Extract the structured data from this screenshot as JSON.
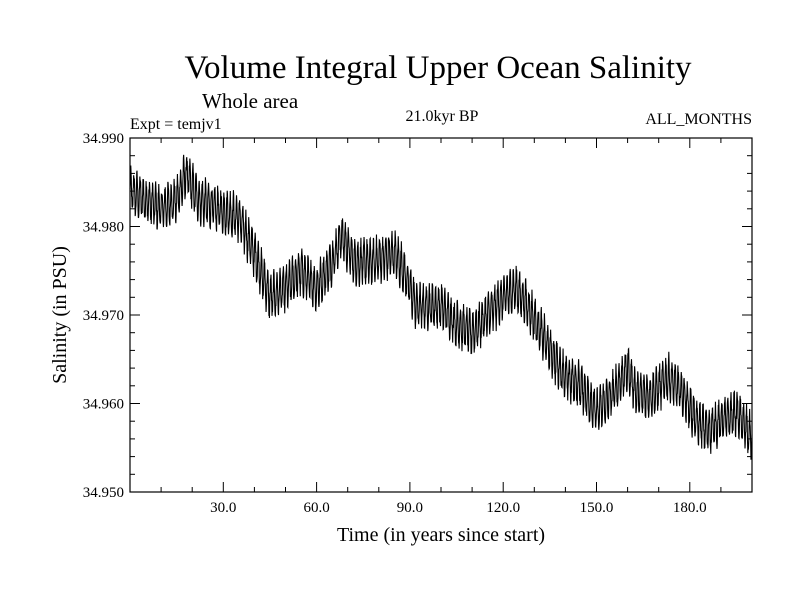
{
  "chart_data": {
    "type": "line",
    "title": "Volume Integral Upper Ocean Salinity",
    "subtitle": "Whole area",
    "experiment": "Expt = temjv1",
    "period": "21.0kyr BP",
    "months": "ALL_MONTHS",
    "xlabel": "Time (in years since start)",
    "ylabel": "Salinity (in PSU)",
    "xlim": [
      0,
      200
    ],
    "ylim": [
      34.95,
      34.99
    ],
    "x_ticks": [
      30,
      60,
      90,
      120,
      150,
      180
    ],
    "x_tick_labels": [
      "30.0",
      "60.0",
      "90.0",
      "120.0",
      "150.0",
      "180.0"
    ],
    "y_ticks": [
      34.95,
      34.96,
      34.97,
      34.98,
      34.99
    ],
    "y_tick_labels": [
      "34.950",
      "34.960",
      "34.970",
      "34.980",
      "34.990"
    ],
    "sampling": "monthly",
    "seasonal_amplitude": 0.0022,
    "series": [
      {
        "name": "salinity",
        "trend_x": [
          0,
          5,
          10,
          15,
          18,
          22,
          28,
          35,
          40,
          45,
          50,
          55,
          60,
          65,
          68,
          72,
          78,
          85,
          88,
          92,
          100,
          105,
          110,
          115,
          120,
          124,
          128,
          135,
          140,
          145,
          150,
          155,
          160,
          163,
          168,
          173,
          178,
          182,
          186,
          190,
          195,
          200
        ],
        "trend_y": [
          34.984,
          34.983,
          34.982,
          34.983,
          34.986,
          34.983,
          34.982,
          34.981,
          34.977,
          34.972,
          34.973,
          34.975,
          34.973,
          34.976,
          34.979,
          34.976,
          34.976,
          34.977,
          34.975,
          34.971,
          34.971,
          34.969,
          34.968,
          34.97,
          34.972,
          34.973,
          34.971,
          34.966,
          34.963,
          34.962,
          34.959,
          34.961,
          34.964,
          34.961,
          34.961,
          34.963,
          34.961,
          34.958,
          34.957,
          34.958,
          34.959,
          34.956
        ]
      }
    ]
  }
}
